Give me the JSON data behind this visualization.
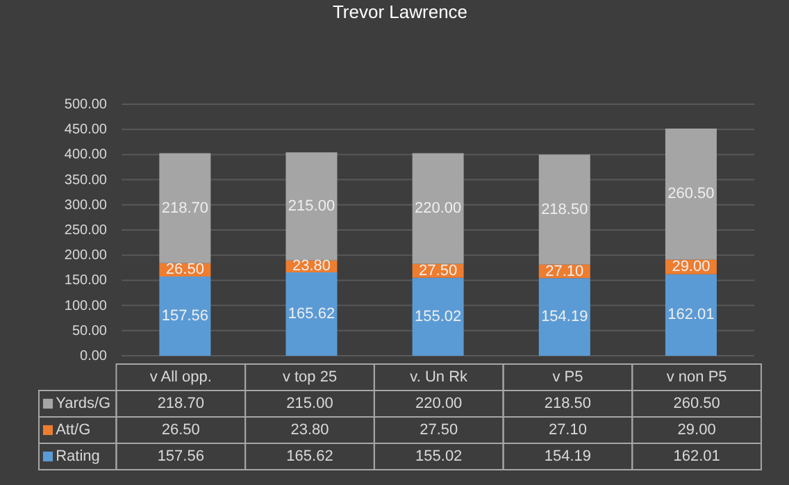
{
  "chart_data": {
    "type": "bar",
    "title": "Trevor Lawrence",
    "stacked": true,
    "data_labels": true,
    "grid": "y",
    "legend": "bottom left",
    "categories": [
      "v All opp.",
      "v top 25",
      "v. Un Rk",
      "v P5",
      "v non P5"
    ],
    "series": [
      {
        "name": "Rating",
        "color": "#5b9bd5",
        "values": [
          157.56,
          165.62,
          155.02,
          154.19,
          162.01
        ],
        "value_labels": [
          "157.56",
          "165.62",
          "155.02",
          "154.19",
          "162.01"
        ]
      },
      {
        "name": "Att/G",
        "color": "#ed7d31",
        "values": [
          26.5,
          23.8,
          27.5,
          27.1,
          29.0
        ],
        "value_labels": [
          "26.50",
          "23.80",
          "27.50",
          "27.10",
          "29.00"
        ]
      },
      {
        "name": "Yards/G",
        "color": "#a5a5a5",
        "values": [
          218.7,
          215.0,
          220.0,
          218.5,
          260.5
        ],
        "value_labels": [
          "218.70",
          "215.00",
          "220.00",
          "218.50",
          "260.50"
        ]
      }
    ],
    "ylim": [
      0,
      500
    ],
    "yticks": [
      {
        "value": 0,
        "label": "0.00"
      },
      {
        "value": 50,
        "label": "50.00"
      },
      {
        "value": 100,
        "label": "100.00"
      },
      {
        "value": 150,
        "label": "150.00"
      },
      {
        "value": 200,
        "label": "200.00"
      },
      {
        "value": 250,
        "label": "250.00"
      },
      {
        "value": 300,
        "label": "300.00"
      },
      {
        "value": 350,
        "label": "350.00"
      },
      {
        "value": 400,
        "label": "400.00"
      },
      {
        "value": 450,
        "label": "450.00"
      },
      {
        "value": 500,
        "label": "500.00"
      }
    ]
  }
}
